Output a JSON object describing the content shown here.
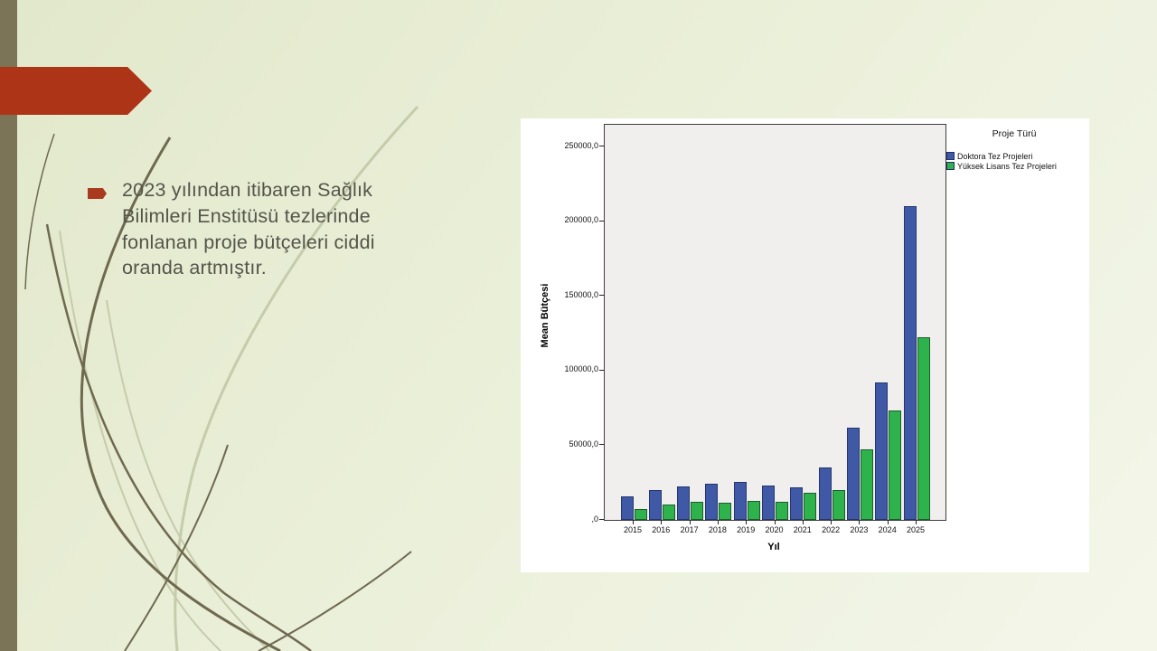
{
  "slide": {
    "bullet_text": "2023 yılından itibaren Sağlık Bilimleri Enstitüsü tezlerinde fonlanan proje bütçeleri ciddi oranda artmıştır."
  },
  "theme": {
    "background_top_left": "#e2e8cb",
    "background_bottom_right": "#f4f6ea",
    "stripe_color": "#7b7457",
    "accent_red": "#ae3418",
    "body_text_color": "#55554b",
    "grass_dark": "#6f6950",
    "grass_light": "#c6cbab",
    "chart_panel_background": "#ffffff",
    "plot_background": "#f0efed"
  },
  "chart_data": {
    "type": "bar",
    "title": "",
    "legend_title": "Proje Türü",
    "xlabel": "Yıl",
    "ylabel": "Mean Bütçesi",
    "categories": [
      "2015",
      "2016",
      "2017",
      "2018",
      "2019",
      "2020",
      "2021",
      "2022",
      "2023",
      "2024",
      "2025"
    ],
    "series": [
      {
        "name": "Doktora Tez Projeleri",
        "color": "#3f59a6",
        "border_color": "#26366b",
        "values": [
          16000,
          20000,
          22500,
          24000,
          25500,
          23000,
          22000,
          35000,
          62000,
          92000,
          210000
        ]
      },
      {
        "name": "Yüksek Lisans Tez Projeleri",
        "color": "#2eb24c",
        "border_color": "#1d5c2d",
        "values": [
          7500,
          10000,
          12000,
          11500,
          12500,
          12000,
          18000,
          20000,
          47000,
          73000,
          122000
        ]
      }
    ],
    "y_ticks": [
      {
        "value": 0,
        "label": ",0"
      },
      {
        "value": 50000,
        "label": "50000,0"
      },
      {
        "value": 100000,
        "label": "100000,0"
      },
      {
        "value": 150000,
        "label": "150000,0"
      },
      {
        "value": 200000,
        "label": "200000,0"
      },
      {
        "value": 250000,
        "label": "250000,0"
      }
    ],
    "ylim": [
      0,
      264000
    ],
    "grid": false,
    "legend_position": "outside-top-right"
  }
}
